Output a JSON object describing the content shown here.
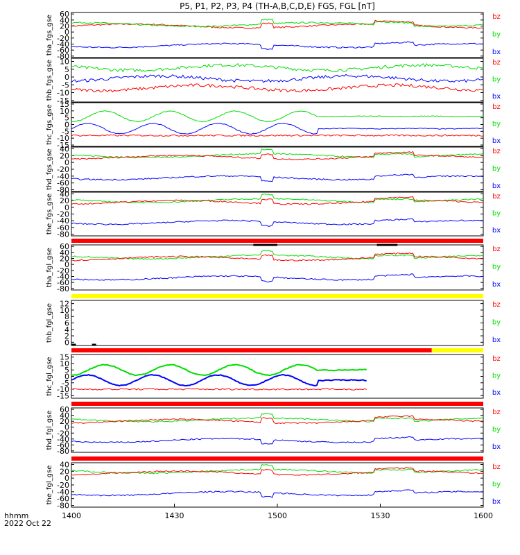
{
  "title": "P5, P1, P2, P3, P4 (TH-A,B,C,D,E) FGS, FGL [nT]",
  "footer": {
    "time_label": "hhmm",
    "date_label": "2022 Oct 22"
  },
  "colors": {
    "bx": "#0000ff",
    "by": "#00dd00",
    "bz": "#ff0000",
    "red_bar": "#ff0000",
    "yellow_bar": "#ffff00",
    "black_bar": "#000000"
  },
  "chart_data": {
    "type": "line",
    "title": "P5, P1, P2, P3, P4 (TH-A,B,C,D,E) FGS, FGL [nT]",
    "x_ticks": [
      "1400",
      "1430",
      "1500",
      "1530",
      "1600"
    ],
    "x_range": [
      "14:00",
      "16:00"
    ],
    "component_legend": [
      "bz",
      "by",
      "bx"
    ],
    "panels": [
      {
        "ylabel": "tha_fgs_gse",
        "yticks": [
          "60",
          "40",
          "20",
          "0",
          "-20",
          "-40",
          "-60",
          "-80"
        ],
        "ylim": [
          -85,
          65
        ],
        "data_end": 120,
        "series": [
          {
            "name": "bz",
            "level": 20,
            "profile": "slow"
          },
          {
            "name": "by",
            "level": 25,
            "profile": "slow"
          },
          {
            "name": "bx",
            "level": -45,
            "profile": "slow"
          }
        ]
      },
      {
        "ylabel": "thb_fgs_gse",
        "yticks": [
          "10",
          "5",
          "0",
          "-5",
          "-10",
          "-15"
        ],
        "ylim": [
          -16,
          12
        ],
        "data_end": 120,
        "series": [
          {
            "name": "by",
            "level": 6,
            "profile": "noisy"
          },
          {
            "name": "bx",
            "level": -1,
            "profile": "noisy"
          },
          {
            "name": "bz",
            "level": -7,
            "profile": "noisy"
          }
        ]
      },
      {
        "ylabel": "thc_fgs_gse",
        "yticks": [
          "15",
          "10",
          "5",
          "0",
          "-5",
          "-10",
          "-15"
        ],
        "ylim": [
          -16,
          16
        ],
        "data_end": 120,
        "series": [
          {
            "name": "bx",
            "level": -3,
            "profile": "oscillating"
          },
          {
            "name": "by",
            "level": 6,
            "profile": "oscillating"
          },
          {
            "name": "bz",
            "level": -8,
            "profile": "flat"
          }
        ]
      },
      {
        "ylabel": "thd_fgs_gse",
        "yticks": [
          "40",
          "20",
          "0",
          "-20",
          "-40",
          "-60",
          "-80"
        ],
        "ylim": [
          -85,
          45
        ],
        "data_end": 120,
        "series": [
          {
            "name": "by",
            "level": 20,
            "profile": "slow"
          },
          {
            "name": "bz",
            "level": 15,
            "profile": "slow"
          },
          {
            "name": "bx",
            "level": -45,
            "profile": "slow"
          }
        ]
      },
      {
        "ylabel": "the_fgs_gse",
        "yticks": [
          "40",
          "20",
          "0",
          "-20",
          "-40",
          "-60",
          "-80"
        ],
        "ylim": [
          -85,
          45
        ],
        "data_end": 120,
        "series": [
          {
            "name": "by",
            "level": 20,
            "profile": "slow"
          },
          {
            "name": "bz",
            "level": 15,
            "profile": "slow"
          },
          {
            "name": "bx",
            "level": -45,
            "profile": "slow"
          }
        ]
      },
      {
        "ylabel": "tha_fgl_gse",
        "yticks": [
          "60",
          "40",
          "20",
          "0",
          "-20",
          "-40",
          "-60",
          "-80"
        ],
        "ylim": [
          -85,
          65
        ],
        "data_end": 120,
        "series": [
          {
            "name": "by",
            "level": 25,
            "profile": "slow"
          },
          {
            "name": "bz",
            "level": 20,
            "profile": "slow"
          },
          {
            "name": "bx",
            "level": -45,
            "profile": "slow"
          }
        ]
      },
      {
        "ylabel": "thb_fgl_gse",
        "yticks": [
          "12",
          "10",
          "8",
          "6",
          "4",
          "2",
          "0"
        ],
        "ylim": [
          -1,
          13
        ],
        "data_end": 0,
        "series": []
      },
      {
        "ylabel": "thc_fgl_gse",
        "yticks": [
          "15",
          "10",
          "5",
          "0",
          "-5",
          "-10",
          "-15"
        ],
        "ylim": [
          -17,
          17
        ],
        "data_end": 86,
        "series": [
          {
            "name": "bx",
            "level": -3,
            "profile": "oscillating"
          },
          {
            "name": "by",
            "level": 5,
            "profile": "oscillating"
          },
          {
            "name": "bz",
            "level": -10,
            "profile": "flat"
          }
        ]
      },
      {
        "ylabel": "thd_fgl_gse",
        "yticks": [
          "60",
          "40",
          "20",
          "0",
          "-20",
          "-40",
          "-60",
          "-80"
        ],
        "ylim": [
          -85,
          65
        ],
        "data_end": 120,
        "series": [
          {
            "name": "by",
            "level": 25,
            "profile": "slow"
          },
          {
            "name": "bz",
            "level": 20,
            "profile": "slow"
          },
          {
            "name": "bx",
            "level": -45,
            "profile": "slow"
          }
        ]
      },
      {
        "ylabel": "the_fgl_gse",
        "yticks": [
          "40",
          "20",
          "0",
          "-20",
          "-40",
          "-60",
          "-80"
        ],
        "ylim": [
          -85,
          45
        ],
        "data_end": 120,
        "series": [
          {
            "name": "by",
            "level": 20,
            "profile": "slow"
          },
          {
            "name": "bz",
            "level": 15,
            "profile": "slow"
          },
          {
            "name": "bx",
            "level": -45,
            "profile": "slow"
          }
        ]
      }
    ]
  }
}
